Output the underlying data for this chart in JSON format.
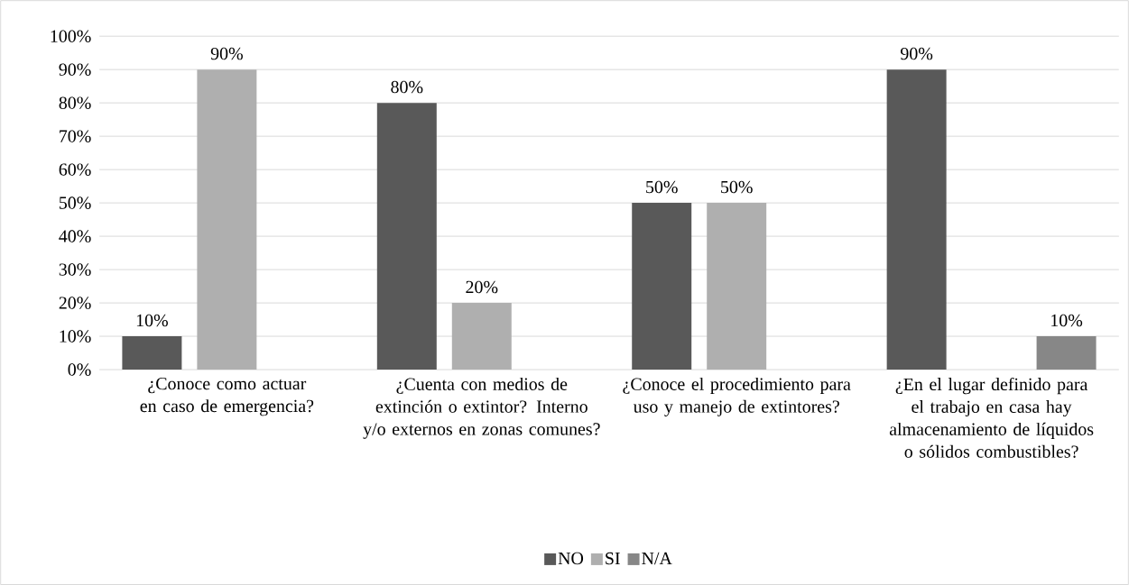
{
  "chart_data": {
    "type": "bar",
    "categories": [
      "¿Conoce como actuar en caso de emergencia?",
      "¿Cuenta con medios de extinción o extintor? Interno y/o externos en zonas comunes?",
      "¿Conoce el procedimiento para uso y manejo de extintores?",
      "¿En el lugar definido para el trabajo en casa hay almacenamiento de líquidos o sólidos combustibles?"
    ],
    "series": [
      {
        "name": "NO",
        "color": "#595959",
        "values": [
          10,
          80,
          50,
          90
        ],
        "value_labels": [
          "10%",
          "80%",
          "50%",
          "90%"
        ]
      },
      {
        "name": "SI",
        "color": "#afafaf",
        "values": [
          90,
          20,
          50,
          null
        ],
        "value_labels": [
          "90%",
          "20%",
          "50%",
          null
        ]
      },
      {
        "name": "N/A",
        "color": "#878787",
        "values": [
          null,
          null,
          null,
          10
        ],
        "value_labels": [
          null,
          null,
          null,
          "10%"
        ]
      }
    ],
    "ylim": [
      0,
      100
    ],
    "yticks": [
      {
        "value": 0,
        "label": "0%"
      },
      {
        "value": 10,
        "label": "10%"
      },
      {
        "value": 20,
        "label": "20%"
      },
      {
        "value": 30,
        "label": "30%"
      },
      {
        "value": 40,
        "label": "40%"
      },
      {
        "value": 50,
        "label": "50%"
      },
      {
        "value": 60,
        "label": "60%"
      },
      {
        "value": 70,
        "label": "70%"
      },
      {
        "value": 80,
        "label": "80%"
      },
      {
        "value": 90,
        "label": "90%"
      },
      {
        "value": 100,
        "label": "100%"
      }
    ],
    "grid": "y",
    "legend": "bottom"
  }
}
